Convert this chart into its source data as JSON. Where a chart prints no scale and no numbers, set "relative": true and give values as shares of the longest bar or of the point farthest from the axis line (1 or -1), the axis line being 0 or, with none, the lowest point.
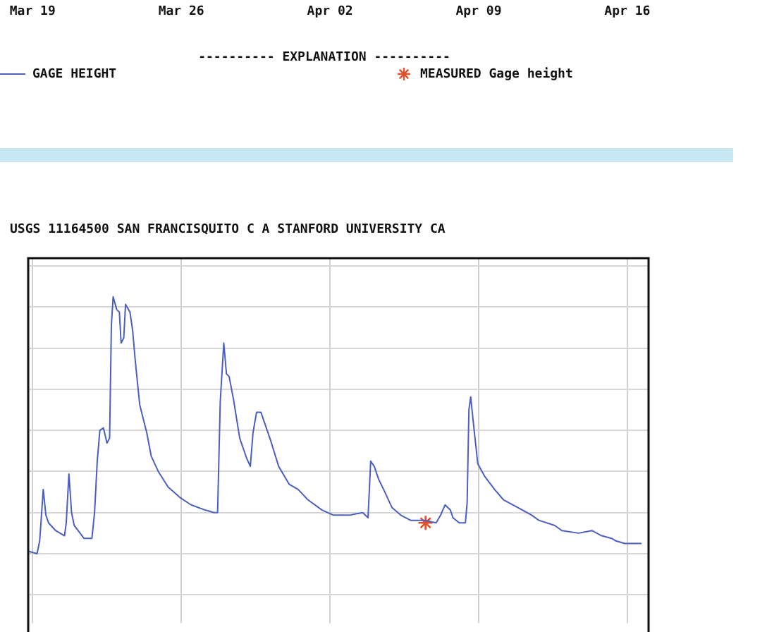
{
  "chart_data": {
    "type": "line",
    "title": "USGS 11164500 SAN FRANCISQUITO C A STANFORD UNIVERSITY CA",
    "legend_title": "---------- EXPLANATION ----------",
    "legend": "top",
    "grid": true,
    "relative": true,
    "xlim": [
      "--03-18T19:00",
      "--04-17T00:00"
    ],
    "xticks": [
      {
        "value": "--03-19",
        "label": "Mar 19"
      },
      {
        "value": "--03-26",
        "label": "Mar 26"
      },
      {
        "value": "--04-02",
        "label": "Apr 02"
      },
      {
        "value": "--04-09",
        "label": "Apr 09"
      },
      {
        "value": "--04-16",
        "label": "Apr 16"
      }
    ],
    "series": [
      {
        "name": "GAGE HEIGHT",
        "color": "#4a5fc1",
        "marker": "none",
        "x": [
          "--03-18T19:00",
          "--03-19T05:00",
          "--03-19T08:00",
          "--03-19T12:00",
          "--03-19T15:00",
          "--03-19T18:00",
          "--03-20T02:00",
          "--03-20T12:00",
          "--03-20T14:00",
          "--03-20T17:00",
          "--03-20T20:00",
          "--03-20T23:00",
          "--03-21T10:00",
          "--03-21T19:00",
          "--03-21T22:00",
          "--03-22T01:00",
          "--03-22T04:00",
          "--03-22T08:00",
          "--03-22T12:00",
          "--03-22T15:00",
          "--03-22T17:00",
          "--03-22T19:00",
          "--03-22T23:00",
          "--03-23T02:00",
          "--03-23T04:00",
          "--03-23T07:00",
          "--03-23T09:00",
          "--03-23T14:00",
          "--03-23T17:00",
          "--03-23T20:00",
          "--03-24T01:00",
          "--03-24T09:00",
          "--03-24T14:00",
          "--03-24T22:00",
          "--03-25T09:00",
          "--03-25T22:00",
          "--03-26T11:00",
          "--03-27T03:00",
          "--03-27T13:00",
          "--03-27T17:00",
          "--03-27T20:00",
          "--03-28T00:00",
          "--03-28T03:00",
          "--03-28T06:00",
          "--03-28T11:00",
          "--03-28T18:00",
          "--03-29T02:00",
          "--03-29T06:00",
          "--03-29T09:00",
          "--03-29T13:00",
          "--03-29T18:00",
          "--03-29T22:00",
          "--03-30T05:00",
          "--03-30T14:00",
          "--03-31T02:00",
          "--03-31T12:00",
          "--03-31T23:00",
          "--04-01T15:00",
          "--04-02T04:00",
          "--04-02T17:00",
          "--04-02T22:00",
          "--04-03T13:00",
          "--04-03T19:00",
          "--04-03T22:00",
          "--04-04T02:00",
          "--04-04T07:00",
          "--04-04T14:00",
          "--04-04T22:00",
          "--04-05T08:00",
          "--04-05T19:00",
          "--04-06T11:00",
          "--04-07T00:00",
          "--04-07T05:00",
          "--04-07T10:00",
          "--04-07T16:00",
          "--04-07T19:00",
          "--04-08T02:00",
          "--04-08T09:00",
          "--04-08T11:00",
          "--04-08T13:00",
          "--04-08T15:00",
          "--04-08T18:00",
          "--04-08T23:00",
          "--04-09T07:00",
          "--04-09T18:00",
          "--04-10T04:00",
          "--04-10T20:00",
          "--04-11T12:00",
          "--04-11T20:00",
          "--04-12T14:00",
          "--04-12T22:00",
          "--04-13T17:00",
          "--04-14T08:00",
          "--04-14T19:00",
          "--04-15T06:00",
          "--04-15T11:00",
          "--04-15T21:00",
          "--04-16T16:00"
        ],
        "values": [
          0.01,
          0,
          0.05,
          0.25,
          0.15,
          0.12,
          0.09,
          0.07,
          0.12,
          0.31,
          0.16,
          0.11,
          0.06,
          0.06,
          0.16,
          0.36,
          0.48,
          0.49,
          0.43,
          0.45,
          0.89,
          1,
          0.95,
          0.94,
          0.82,
          0.84,
          0.97,
          0.94,
          0.87,
          0.75,
          0.58,
          0.47,
          0.38,
          0.32,
          0.26,
          0.22,
          0.19,
          0.17,
          0.16,
          0.16,
          0.59,
          0.82,
          0.7,
          0.69,
          0.6,
          0.45,
          0.37,
          0.34,
          0.47,
          0.55,
          0.55,
          0.51,
          0.44,
          0.34,
          0.27,
          0.25,
          0.21,
          0.17,
          0.15,
          0.15,
          0.15,
          0.16,
          0.14,
          0.36,
          0.34,
          0.29,
          0.24,
          0.18,
          0.15,
          0.13,
          0.13,
          0.12,
          0.15,
          0.19,
          0.17,
          0.14,
          0.12,
          0.12,
          0.2,
          0.56,
          0.61,
          0.51,
          0.35,
          0.3,
          0.25,
          0.21,
          0.18,
          0.15,
          0.13,
          0.11,
          0.09,
          0.08,
          0.09,
          0.07,
          0.06,
          0.05,
          0.04,
          0.04
        ]
      },
      {
        "name": "MEASURED Gage height",
        "type": "scatter",
        "color": "#e0502a",
        "marker": "cross",
        "x": [
          "--04-06T12:00"
        ],
        "values": [
          0.12
        ]
      }
    ]
  }
}
